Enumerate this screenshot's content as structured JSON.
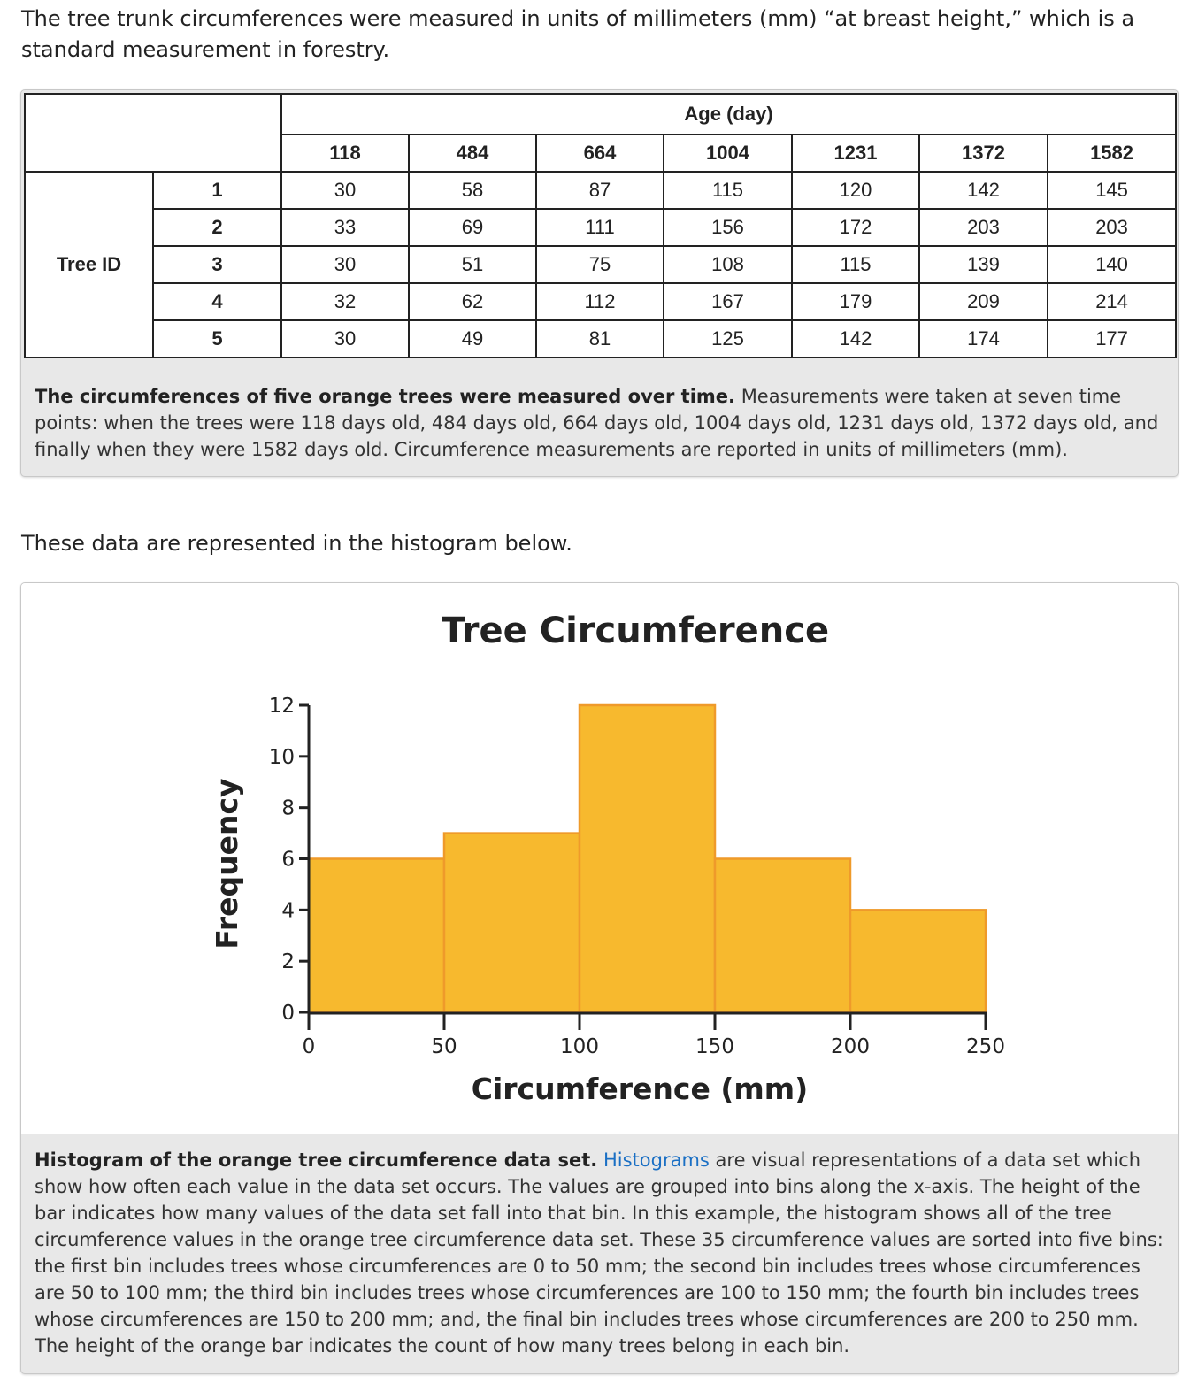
{
  "intro": "The tree trunk circumferences were measured in units of millimeters (mm) “at breast height,” which is a standard measurement in forestry.",
  "table": {
    "age_header": "Age (day)",
    "row_group_label": "Tree ID",
    "ages": [
      "118",
      "484",
      "664",
      "1004",
      "1231",
      "1372",
      "1582"
    ],
    "rows": [
      {
        "id": "1",
        "values": [
          "30",
          "58",
          "87",
          "115",
          "120",
          "142",
          "145"
        ]
      },
      {
        "id": "2",
        "values": [
          "33",
          "69",
          "111",
          "156",
          "172",
          "203",
          "203"
        ]
      },
      {
        "id": "3",
        "values": [
          "30",
          "51",
          "75",
          "108",
          "115",
          "139",
          "140"
        ]
      },
      {
        "id": "4",
        "values": [
          "32",
          "62",
          "112",
          "167",
          "179",
          "209",
          "214"
        ]
      },
      {
        "id": "5",
        "values": [
          "30",
          "49",
          "81",
          "125",
          "142",
          "174",
          "177"
        ]
      }
    ],
    "caption_bold": "The circumferences of five orange trees were measured over time.",
    "caption_rest": " Measurements were taken at seven time points: when the trees were 118 days old, 484 days old, 664 days old, 1004 days old, 1231 days old, 1372 days old, and finally when they were 1582 days old. Circumference measurements are reported in units of millimeters (mm)."
  },
  "between_text": "These data are represented in the histogram below.",
  "hist_caption": {
    "bold": "Histogram of the orange tree circumference data set.",
    "link": "Histograms",
    "rest": " are visual representations of a data set which show how often each value in the data set occurs. The values are grouped into bins along the x-axis. The height of the bar indicates how many values of the data set fall into that bin. In this example, the histogram shows all of the tree circumference values in the orange tree circumference data set. These 35 circumference values are sorted into five bins: the first bin includes trees whose circumferences are 0 to 50 mm; the second bin includes trees whose circumferences are 50 to 100 mm; the third bin includes trees whose circumferences are 100 to 150 mm; the fourth bin includes trees whose circumferences are 150 to 200 mm; and, the final bin includes trees whose circumferences are 200 to 250 mm. The height of the orange bar indicates the count of how many trees belong in each bin."
  },
  "colors": {
    "bar_fill": "#f7b92e",
    "bar_stroke": "#ef9a2a",
    "axis": "#222222",
    "link": "#1a6fc4"
  },
  "chart_data": {
    "type": "bar",
    "title": "Tree Circumference",
    "xlabel": "Circumference (mm)",
    "ylabel": "Frequency",
    "bins": [
      {
        "start": 0,
        "end": 50,
        "count": 6
      },
      {
        "start": 50,
        "end": 100,
        "count": 7
      },
      {
        "start": 100,
        "end": 150,
        "count": 12
      },
      {
        "start": 150,
        "end": 200,
        "count": 6
      },
      {
        "start": 200,
        "end": 250,
        "count": 4
      }
    ],
    "xlim": [
      0,
      250
    ],
    "ylim": [
      0,
      12
    ],
    "x_ticks": [
      "0",
      "50",
      "100",
      "150",
      "200",
      "250"
    ],
    "y_ticks": [
      "0",
      "2",
      "4",
      "6",
      "8",
      "10",
      "12"
    ],
    "grid": false,
    "legend": "none"
  }
}
